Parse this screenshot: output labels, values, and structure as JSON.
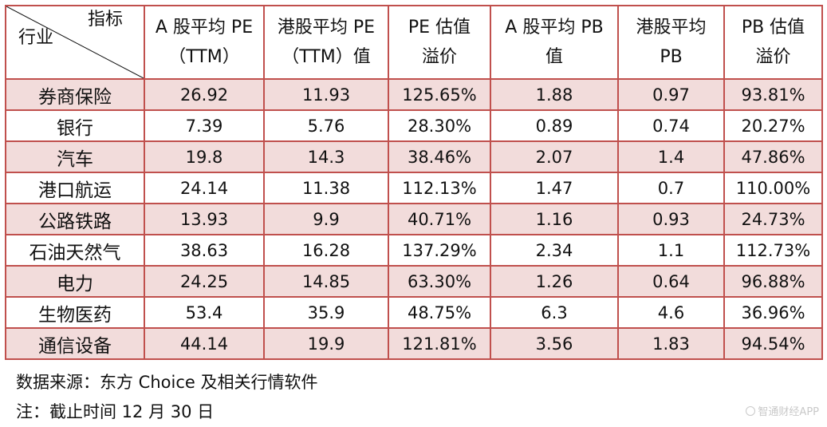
{
  "table": {
    "corner": {
      "top_label": "指标",
      "bottom_label": "行业"
    },
    "headers": [
      [
        "A 股平均 PE",
        "（TTM）"
      ],
      [
        "港股平均 PE",
        "（TTM）值"
      ],
      [
        "PE 估值",
        "溢价"
      ],
      [
        "A 股平均 PB",
        "值"
      ],
      [
        "港股平均",
        "PB"
      ],
      [
        "PB 估值",
        "溢价"
      ]
    ],
    "rows": [
      {
        "industry": "券商保险",
        "values": [
          "26.92",
          "11.93",
          "125.65%",
          "1.88",
          "0.97",
          "93.81%"
        ]
      },
      {
        "industry": "银行",
        "values": [
          "7.39",
          "5.76",
          "28.30%",
          "0.89",
          "0.74",
          "20.27%"
        ]
      },
      {
        "industry": "汽车",
        "values": [
          "19.8",
          "14.3",
          "38.46%",
          "2.07",
          "1.4",
          "47.86%"
        ]
      },
      {
        "industry": "港口航运",
        "values": [
          "24.14",
          "11.38",
          "112.13%",
          "1.47",
          "0.7",
          "110.00%"
        ]
      },
      {
        "industry": "公路铁路",
        "values": [
          "13.93",
          "9.9",
          "40.71%",
          "1.16",
          "0.93",
          "24.73%"
        ]
      },
      {
        "industry": "石油天然气",
        "values": [
          "38.63",
          "16.28",
          "137.29%",
          "2.34",
          "1.1",
          "112.73%"
        ]
      },
      {
        "industry": "电力",
        "values": [
          "24.25",
          "14.85",
          "63.30%",
          "1.26",
          "0.64",
          "96.88%"
        ]
      },
      {
        "industry": "生物医药",
        "values": [
          "53.4",
          "35.9",
          "48.75%",
          "6.3",
          "4.6",
          "36.96%"
        ]
      },
      {
        "industry": "通信设备",
        "values": [
          "44.14",
          "19.9",
          "121.81%",
          "3.56",
          "1.83",
          "94.54%"
        ]
      }
    ]
  },
  "notes": {
    "source": "数据来源：东方 Choice 及相关行情软件",
    "note": "注：截止时间 12 月 30 日"
  },
  "watermark": {
    "text": "智通财经APP",
    "icon": "logo-icon"
  },
  "colors": {
    "border": "#c0504d",
    "alt_row_fill": "#f2dcdb"
  }
}
